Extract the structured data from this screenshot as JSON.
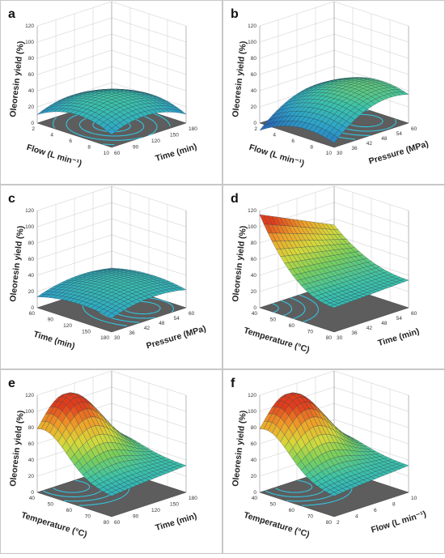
{
  "chart_data": [
    {
      "type": "surface",
      "panel": "a",
      "zlabel": "Oleoresin yield (%)",
      "x_label": "Flow (L min⁻¹)",
      "x_ticks": [
        "2",
        "4",
        "6",
        "8",
        "10"
      ],
      "x_range": [
        2,
        10
      ],
      "y_label": "Time (min)",
      "y_ticks": [
        "60",
        "90",
        "120",
        "150",
        "180"
      ],
      "y_range": [
        60,
        180
      ],
      "z_ticks": [
        "0",
        "20",
        "40",
        "60",
        "80",
        "100",
        "120"
      ],
      "z_range": [
        0,
        120
      ],
      "surface": {
        "base": 36,
        "cx": 0.45,
        "cy": 0.45,
        "a": 26,
        "b": 24,
        "tilt": 0
      }
    },
    {
      "type": "surface",
      "panel": "b",
      "zlabel": "Oleoresin yield (%)",
      "x_label": "Flow (L min⁻¹)",
      "x_ticks": [
        "2",
        "4",
        "6",
        "8",
        "10"
      ],
      "x_range": [
        2,
        10
      ],
      "y_label": "Pressure (MPa)",
      "y_ticks": [
        "30",
        "36",
        "42",
        "48",
        "54",
        "60"
      ],
      "y_range": [
        30,
        60
      ],
      "z_ticks": [
        "0",
        "20",
        "40",
        "60",
        "80",
        "100",
        "120"
      ],
      "z_range": [
        0,
        120
      ],
      "surface": {
        "base": 45,
        "cx": 0.35,
        "cy": 0.75,
        "a": 24,
        "b": 30,
        "tilt": 0
      }
    },
    {
      "type": "surface",
      "panel": "c",
      "zlabel": "Oleoresin yield (%)",
      "x_label": "Time (min)",
      "x_ticks": [
        "60",
        "90",
        "120",
        "150",
        "180"
      ],
      "x_range": [
        60,
        180
      ],
      "y_label": "Pressure (MPa)",
      "y_ticks": [
        "30",
        "36",
        "42",
        "48",
        "54",
        "60"
      ],
      "y_range": [
        30,
        60
      ],
      "z_ticks": [
        "0",
        "20",
        "40",
        "60",
        "80",
        "100",
        "120"
      ],
      "z_range": [
        0,
        120
      ],
      "surface": {
        "base": 33,
        "cx": 0.3,
        "cy": 0.7,
        "a": 12,
        "b": 14,
        "tilt": 6
      }
    },
    {
      "type": "surface",
      "panel": "d",
      "zlabel": "Oleoresin yield (%)",
      "x_label": "Temperature (°C)",
      "x_ticks": [
        "40",
        "50",
        "60",
        "70",
        "80"
      ],
      "x_range": [
        40,
        80
      ],
      "y_label": "Time (min)",
      "y_ticks": [
        "30",
        "36",
        "42",
        "48",
        "54",
        "60"
      ],
      "y_range": [
        30,
        60
      ],
      "z_ticks": [
        "0",
        "20",
        "40",
        "60",
        "80",
        "100",
        "120"
      ],
      "z_range": [
        0,
        120
      ],
      "surface": {
        "base": 30,
        "cx": 1.0,
        "cy": 0.0,
        "a": -60,
        "b": -40,
        "tilt": 25,
        "mode": "rise"
      }
    },
    {
      "type": "surface",
      "panel": "e",
      "zlabel": "Oleoresin yield (%)",
      "x_label": "Temperature (°C)",
      "x_ticks": [
        "40",
        "50",
        "60",
        "70",
        "80"
      ],
      "x_range": [
        40,
        80
      ],
      "y_label": "Time (min)",
      "y_ticks": [
        "60",
        "90",
        "120",
        "150",
        "180"
      ],
      "y_range": [
        60,
        180
      ],
      "z_ticks": [
        "0",
        "20",
        "40",
        "60",
        "80",
        "100",
        "120"
      ],
      "z_range": [
        0,
        120
      ],
      "surface": {
        "base": 25,
        "cx": 0.9,
        "cy": 0.35,
        "a": -70,
        "b": -30,
        "tilt": 10,
        "mode": "peak"
      }
    },
    {
      "type": "surface",
      "panel": "f",
      "zlabel": "Oleoresin yield (%)",
      "x_label": "Temperature (°C)",
      "x_ticks": [
        "40",
        "50",
        "60",
        "70",
        "80"
      ],
      "x_range": [
        40,
        80
      ],
      "y_label": "Flow (L min⁻¹)",
      "y_ticks": [
        "2",
        "4",
        "6",
        "8",
        "10"
      ],
      "y_range": [
        2,
        10
      ],
      "z_ticks": [
        "0",
        "20",
        "40",
        "60",
        "80",
        "100",
        "120"
      ],
      "z_range": [
        0,
        120
      ],
      "surface": {
        "base": 25,
        "cx": 0.9,
        "cy": 0.35,
        "a": -70,
        "b": -30,
        "tilt": 10,
        "mode": "peak"
      }
    }
  ],
  "colors": {
    "colormap": [
      "#2b6cb8",
      "#2fa3c8",
      "#3ec3a8",
      "#7ccf5a",
      "#d8d93a",
      "#f0a028",
      "#e03c1c"
    ],
    "floor": "#5d5d5d",
    "contour": "#34c3e0"
  }
}
